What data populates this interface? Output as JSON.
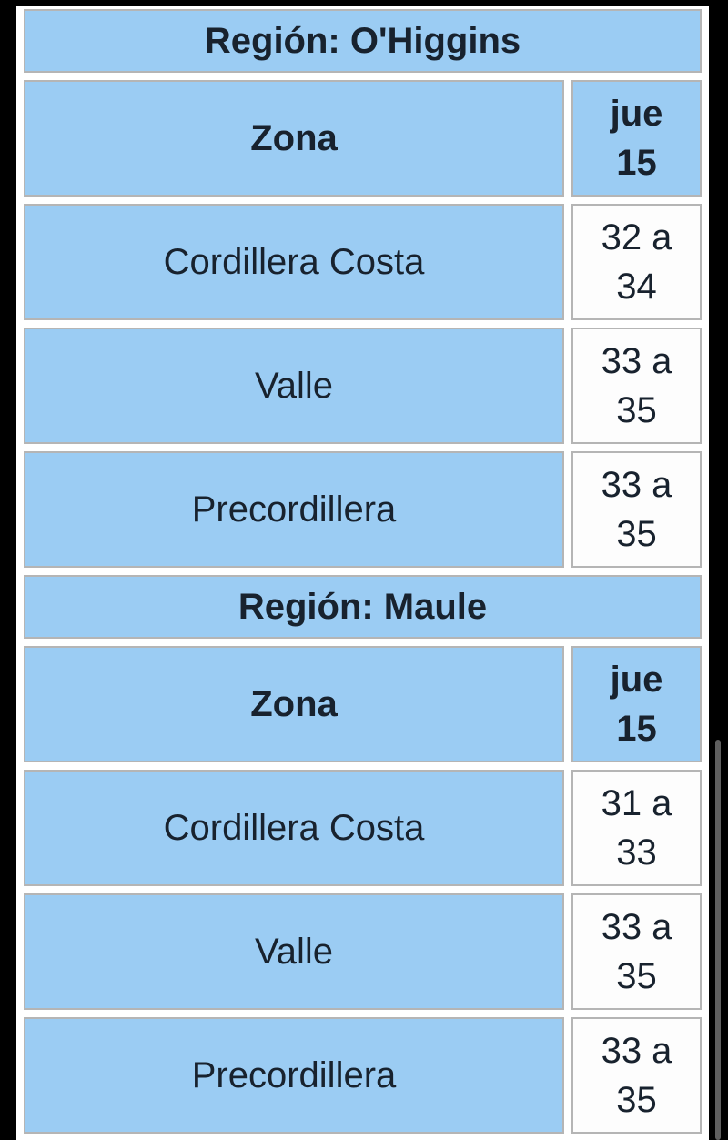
{
  "colors": {
    "page_background": "#000000",
    "cell_blue": "#9bccf3",
    "cell_white": "#fdfdfd",
    "cell_border": "#b5b5b5",
    "table_gap": "#ffffff",
    "text": "#18222e",
    "scrollbar_thumb": "#5f5f5f"
  },
  "sections": [
    {
      "region_label": "Región: O'Higgins",
      "columns": {
        "zone": "Zona",
        "day": "jue\n15"
      },
      "rows": [
        {
          "zone": "Cordillera Costa",
          "value": "32 a\n34"
        },
        {
          "zone": "Valle",
          "value": "33 a\n35"
        },
        {
          "zone": "Precordillera",
          "value": "33 a\n35"
        }
      ]
    },
    {
      "region_label": "Región: Maule",
      "columns": {
        "zone": "Zona",
        "day": "jue\n15"
      },
      "rows": [
        {
          "zone": "Cordillera Costa",
          "value": "31 a\n33"
        },
        {
          "zone": "Valle",
          "value": "33 a\n35"
        },
        {
          "zone": "Precordillera",
          "value": "33 a\n35"
        }
      ]
    }
  ]
}
